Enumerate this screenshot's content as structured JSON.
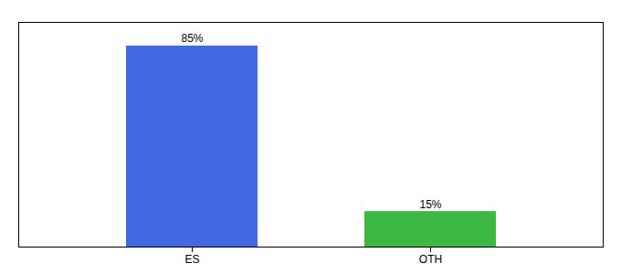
{
  "chart_data": {
    "type": "bar",
    "categories": [
      "ES",
      "OTH"
    ],
    "values": [
      85,
      15
    ],
    "value_labels": [
      "85%",
      "15%"
    ],
    "colors": [
      "#4169e1",
      "#3cb843"
    ],
    "ylim": [
      0,
      95
    ],
    "grid": false,
    "data_labels": true,
    "tick_labels": "x"
  }
}
